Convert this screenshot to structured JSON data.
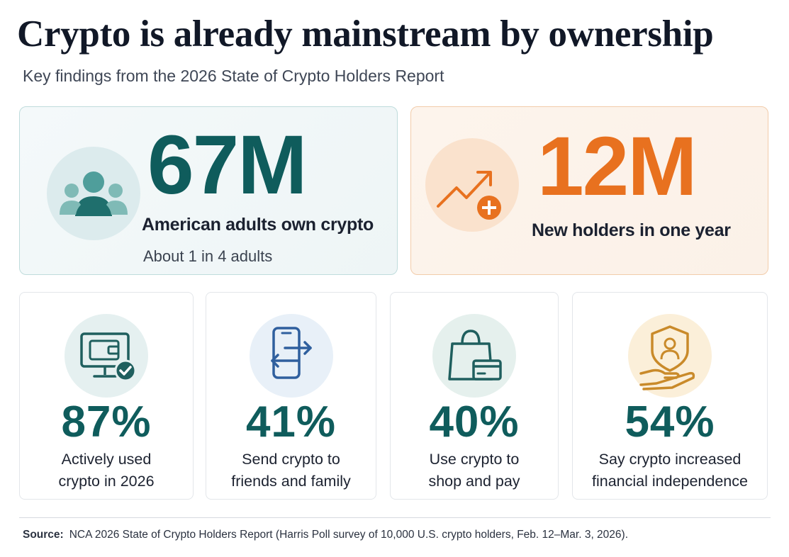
{
  "header": {
    "title": "Crypto is already mainstream by ownership",
    "subtitle": "Key findings from the 2026 State of Crypto Holders Report"
  },
  "headline_cards": [
    {
      "value": "67M",
      "label": "American adults own crypto",
      "sublabel": "About 1 in 4 adults",
      "icon": "people-group-icon",
      "color": "#0f5c5c"
    },
    {
      "value": "12M",
      "label": "New holders in one year",
      "icon": "trend-up-plus-icon",
      "color": "#e8711f"
    }
  ],
  "stat_cards": [
    {
      "value": "87%",
      "label_line1": "Actively used",
      "label_line2": "crypto in 2026",
      "icon": "wallet-monitor-check-icon"
    },
    {
      "value": "41%",
      "label_line1": "Send crypto to",
      "label_line2": "friends and family",
      "icon": "phone-transfer-icon"
    },
    {
      "value": "40%",
      "label_line1": "Use crypto to",
      "label_line2": "shop and pay",
      "icon": "shopping-bag-card-icon"
    },
    {
      "value": "54%",
      "label_line1": "Say crypto increased",
      "label_line2": "financial independence",
      "icon": "shield-hand-person-icon"
    }
  ],
  "footer": {
    "source_label": "Source:",
    "source_text": "NCA 2026 State of Crypto Holders Report (Harris Poll survey of 10,000 U.S. crypto holders, Feb. 12–Mar. 3, 2026)."
  },
  "colors": {
    "teal": "#0f5c5c",
    "orange": "#e8711f",
    "blue_icon": "#2f5f9e",
    "gold_icon": "#c98a2a"
  }
}
